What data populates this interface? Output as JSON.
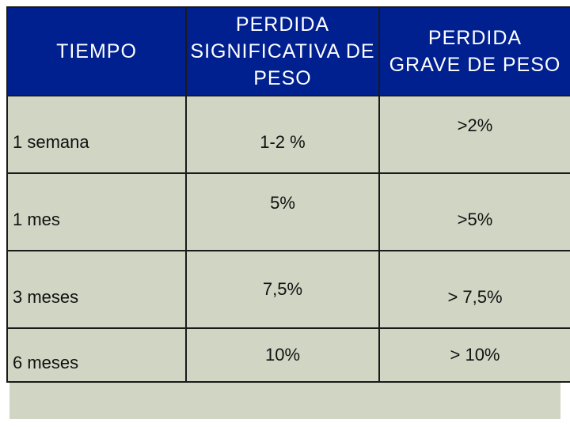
{
  "table": {
    "headers": [
      "TIEMPO",
      "PERDIDA\nSIGNIFICATIVA DE\nPESO",
      "PERDIDA\nGRAVE DE PESO"
    ],
    "header_lines": {
      "time": "TIEMPO",
      "significant": [
        "PERDIDA",
        "SIGNIFICATIVA DE",
        "PESO"
      ],
      "severe": [
        "PERDIDA",
        "GRAVE DE PESO"
      ]
    },
    "rows": [
      {
        "tiempo": "1 semana",
        "significativa": "1-2 %",
        "grave": ">2%"
      },
      {
        "tiempo": "1 mes",
        "significativa": "5%",
        "grave": ">5%"
      },
      {
        "tiempo": "3 meses",
        "significativa": "7,5%",
        "grave": "> 7,5%"
      },
      {
        "tiempo": "6 meses",
        "significativa": "10%",
        "grave": "> 10%"
      }
    ]
  },
  "colors": {
    "header_bg": "#002090",
    "header_text": "#ffffff",
    "body_bg": "#d1d5c4",
    "body_text": "#111111",
    "border": "#1a1a1a"
  }
}
